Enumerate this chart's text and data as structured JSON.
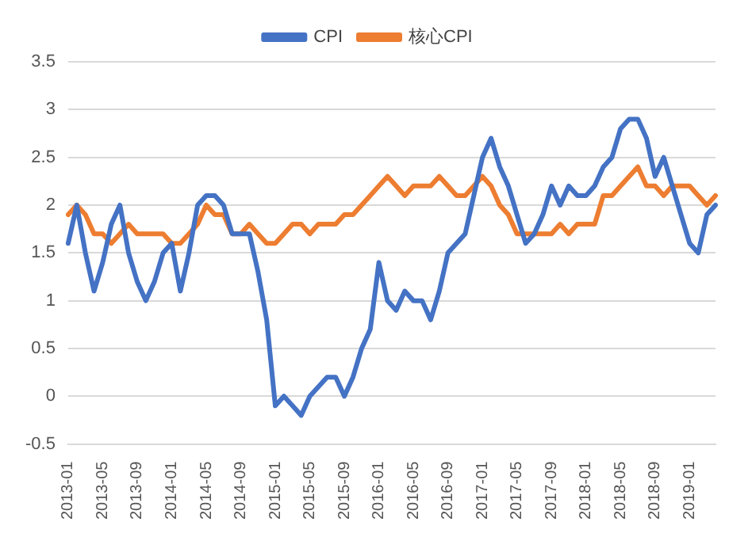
{
  "chart_data": {
    "type": "line",
    "categories": [
      "2013-01",
      null,
      null,
      null,
      "2013-05",
      null,
      null,
      null,
      "2013-09",
      null,
      null,
      null,
      "2014-01",
      null,
      null,
      null,
      "2014-05",
      null,
      null,
      null,
      "2014-09",
      null,
      null,
      null,
      "2015-01",
      null,
      null,
      null,
      "2015-05",
      null,
      null,
      null,
      "2015-09",
      null,
      null,
      null,
      "2016-01",
      null,
      null,
      null,
      "2016-05",
      null,
      null,
      null,
      "2016-09",
      null,
      null,
      null,
      "2017-01",
      null,
      null,
      null,
      "2017-05",
      null,
      null,
      null,
      "2017-09",
      null,
      null,
      null,
      "2018-01",
      null,
      null,
      null,
      "2018-05",
      null,
      null,
      null,
      "2018-09",
      null,
      null,
      null,
      "2019-01",
      null,
      null,
      null
    ],
    "series": [
      {
        "name": "CPI",
        "color": "#4472c4",
        "values": [
          1.6,
          2.0,
          1.5,
          1.1,
          1.4,
          1.8,
          2.0,
          1.5,
          1.2,
          1.0,
          1.2,
          1.5,
          1.6,
          1.1,
          1.5,
          2.0,
          2.1,
          2.1,
          2.0,
          1.7,
          1.7,
          1.7,
          1.3,
          0.8,
          -0.1,
          0.0,
          -0.1,
          -0.2,
          0.0,
          0.1,
          0.2,
          0.2,
          0.0,
          0.2,
          0.5,
          0.7,
          1.4,
          1.0,
          0.9,
          1.1,
          1.0,
          1.0,
          0.8,
          1.1,
          1.5,
          1.6,
          1.7,
          2.1,
          2.5,
          2.7,
          2.4,
          2.2,
          1.9,
          1.6,
          1.7,
          1.9,
          2.2,
          2.0,
          2.2,
          2.1,
          2.1,
          2.2,
          2.4,
          2.5,
          2.8,
          2.9,
          2.9,
          2.7,
          2.3,
          2.5,
          2.2,
          1.9,
          1.6,
          1.5,
          1.9,
          2.0
        ]
      },
      {
        "name": "核心CPI",
        "color": "#ed7d31",
        "values": [
          1.9,
          2.0,
          1.9,
          1.7,
          1.7,
          1.6,
          1.7,
          1.8,
          1.7,
          1.7,
          1.7,
          1.7,
          1.6,
          1.6,
          1.7,
          1.8,
          2.0,
          1.9,
          1.9,
          1.7,
          1.7,
          1.8,
          1.7,
          1.6,
          1.6,
          1.7,
          1.8,
          1.8,
          1.7,
          1.8,
          1.8,
          1.8,
          1.9,
          1.9,
          2.0,
          2.1,
          2.2,
          2.3,
          2.2,
          2.1,
          2.2,
          2.2,
          2.2,
          2.3,
          2.2,
          2.1,
          2.1,
          2.2,
          2.3,
          2.2,
          2.0,
          1.9,
          1.7,
          1.7,
          1.7,
          1.7,
          1.7,
          1.8,
          1.7,
          1.8,
          1.8,
          1.8,
          2.1,
          2.1,
          2.2,
          2.3,
          2.4,
          2.2,
          2.2,
          2.1,
          2.2,
          2.2,
          2.2,
          2.1,
          2.0,
          2.1
        ]
      }
    ],
    "ylim": [
      -0.5,
      3.5
    ],
    "yticks": [
      -0.5,
      0,
      0.5,
      1,
      1.5,
      2,
      2.5,
      3,
      3.5
    ],
    "grid": "y",
    "legend": "top",
    "marker": "none",
    "line_style": "solid"
  }
}
